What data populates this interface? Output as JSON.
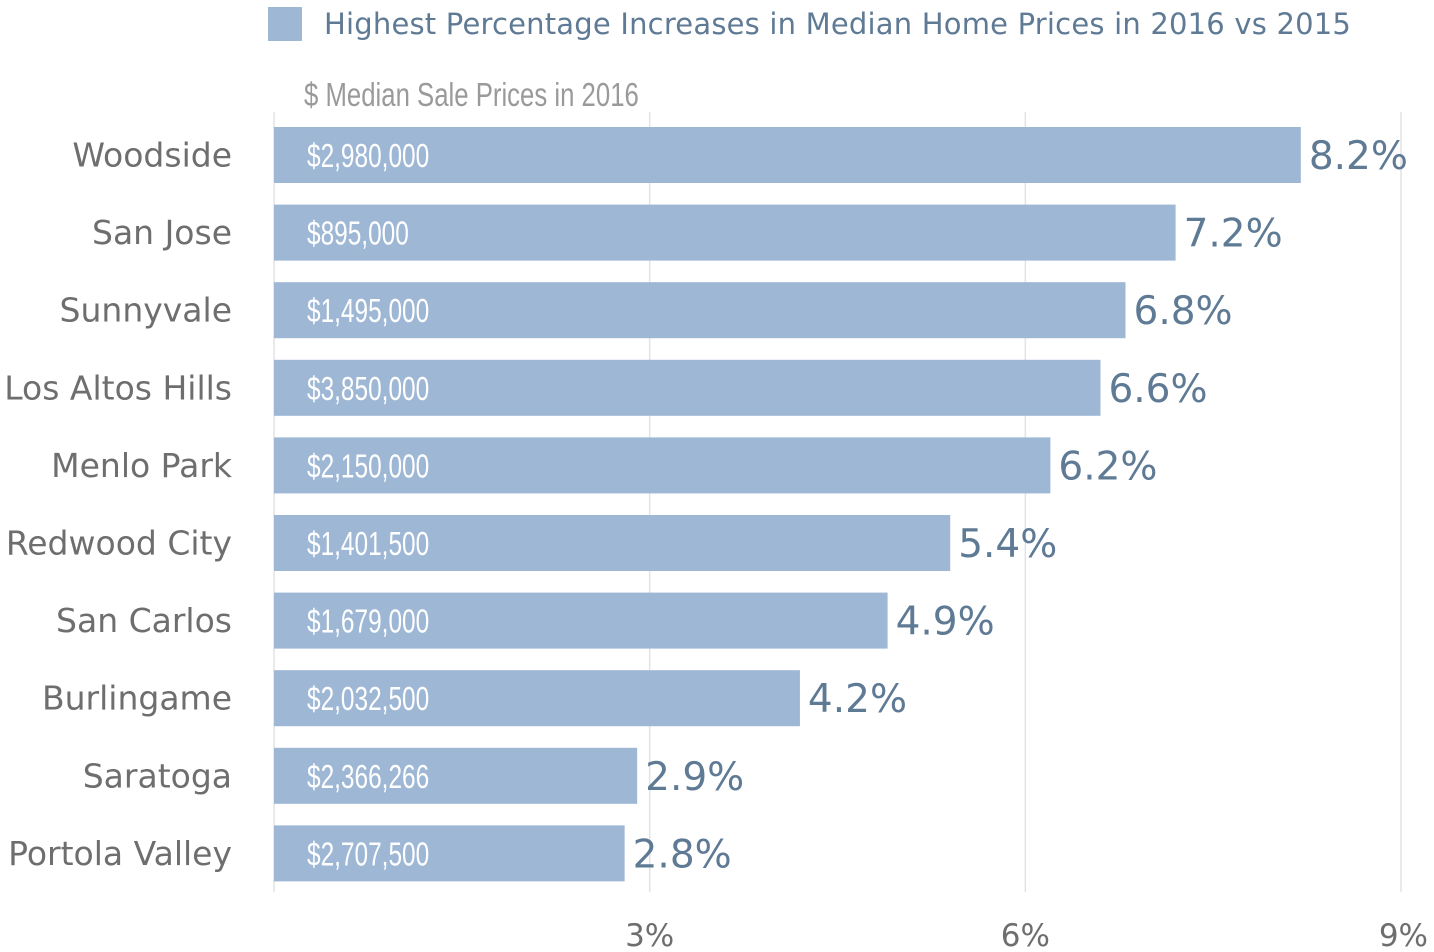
{
  "legend": {
    "label": "Highest Percentage Increases in Median Home Prices in 2016 vs 2015",
    "color": "#9db7d5"
  },
  "subtitle": "$ Median Sale Prices in 2016",
  "chart_data": {
    "type": "bar",
    "orientation": "horizontal",
    "categories": [
      "Woodside",
      "San Jose",
      "Sunnyvale",
      "Los Altos Hills",
      "Menlo Park",
      "Redwood City",
      "San Carlos",
      "Burlingame",
      "Saratoga",
      "Portola Valley"
    ],
    "series": [
      {
        "name": "Highest Percentage Increases in Median Home Prices in 2016 vs 2015",
        "values": [
          8.2,
          7.2,
          6.8,
          6.6,
          6.2,
          5.4,
          4.9,
          4.2,
          2.9,
          2.8
        ]
      }
    ],
    "value_labels": [
      "8.2%",
      "7.2%",
      "6.8%",
      "6.6%",
      "6.2%",
      "5.4%",
      "4.9%",
      "4.2%",
      "2.9%",
      "2.8%"
    ],
    "price_labels": [
      "$2,980,000",
      "$895,000",
      "$1,495,000",
      "$3,850,000",
      "$2,150,000",
      "$1,401,500",
      "$1,679,000",
      "$2,032,500",
      "$2,366,266",
      "$2,707,500"
    ],
    "xlim": [
      0,
      9
    ],
    "xticks": [
      3,
      6,
      9
    ],
    "xtick_labels": [
      "3%",
      "6%",
      "9%"
    ],
    "grid": "vertical",
    "legend_position": "top",
    "bar_color": "#9db7d5",
    "value_label_color": "#5f7a94"
  }
}
